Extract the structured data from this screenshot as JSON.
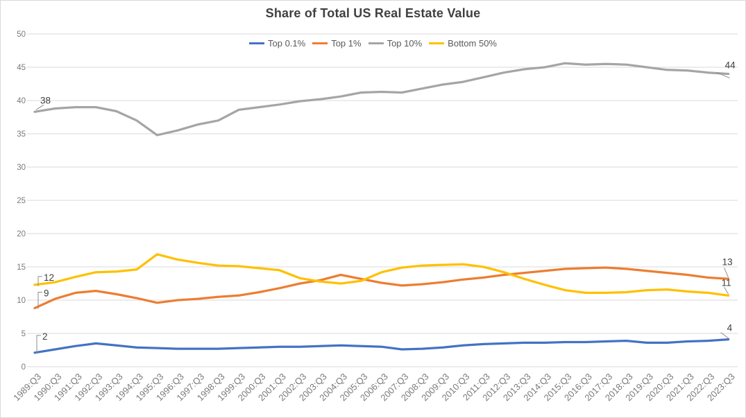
{
  "chart_data": {
    "type": "line",
    "title": "Share of Total US Real Estate Value",
    "xlabel": "",
    "ylabel": "",
    "ylim": [
      0,
      50
    ],
    "y_ticks": [
      0,
      5,
      10,
      15,
      20,
      25,
      30,
      35,
      40,
      45,
      50
    ],
    "grid": true,
    "legend_position": "top",
    "categories": [
      "1989:Q3",
      "1990:Q3",
      "1991:Q3",
      "1992:Q3",
      "1993:Q3",
      "1994:Q3",
      "1995:Q3",
      "1996:Q3",
      "1997:Q3",
      "1998:Q3",
      "1999:Q3",
      "2000:Q3",
      "2001:Q3",
      "2002:Q3",
      "2003:Q3",
      "2004:Q3",
      "2005:Q3",
      "2006:Q3",
      "2007:Q3",
      "2008:Q3",
      "2009:Q3",
      "2010:Q3",
      "2011:Q3",
      "2012:Q3",
      "2013:Q3",
      "2014:Q3",
      "2015:Q3",
      "2016:Q3",
      "2017:Q3",
      "2018:Q3",
      "2019:Q3",
      "2020:Q3",
      "2021:Q3",
      "2022:Q3",
      "2023:Q3"
    ],
    "series": [
      {
        "name": "Top 0.1%",
        "color": "#4472C4",
        "start_label": "2",
        "end_label": "4",
        "values": [
          2.1,
          2.6,
          3.1,
          3.5,
          3.2,
          2.9,
          2.8,
          2.7,
          2.7,
          2.7,
          2.8,
          2.9,
          3.0,
          3.0,
          3.1,
          3.2,
          3.1,
          3.0,
          2.6,
          2.7,
          2.9,
          3.2,
          3.4,
          3.5,
          3.6,
          3.6,
          3.7,
          3.7,
          3.8,
          3.9,
          3.6,
          3.6,
          3.8,
          3.9,
          4.1
        ]
      },
      {
        "name": "Top 1%",
        "color": "#ED7D31",
        "start_label": "9",
        "end_label": "13",
        "values": [
          8.8,
          10.2,
          11.1,
          11.4,
          10.9,
          10.3,
          9.6,
          10.0,
          10.2,
          10.5,
          10.7,
          11.2,
          11.8,
          12.5,
          13.0,
          13.8,
          13.2,
          12.6,
          12.2,
          12.4,
          12.7,
          13.1,
          13.4,
          13.8,
          14.1,
          14.4,
          14.7,
          14.8,
          14.9,
          14.7,
          14.4,
          14.1,
          13.8,
          13.4,
          13.2
        ]
      },
      {
        "name": "Top 10%",
        "color": "#A5A5A5",
        "start_label": "38",
        "end_label": "44",
        "values": [
          38.3,
          38.8,
          39.0,
          39.0,
          38.4,
          37.0,
          34.8,
          35.5,
          36.4,
          37.0,
          38.6,
          39.0,
          39.4,
          39.9,
          40.2,
          40.6,
          41.2,
          41.3,
          41.2,
          41.8,
          42.4,
          42.8,
          43.5,
          44.2,
          44.7,
          45.0,
          45.6,
          45.4,
          45.5,
          45.4,
          45.0,
          44.6,
          44.5,
          44.2,
          44.0
        ]
      },
      {
        "name": "Bottom 50%",
        "color": "#FFC000",
        "start_label": "12",
        "end_label": "11",
        "values": [
          12.3,
          12.7,
          13.5,
          14.2,
          14.3,
          14.6,
          16.9,
          16.1,
          15.6,
          15.2,
          15.1,
          14.8,
          14.5,
          13.3,
          12.8,
          12.5,
          12.9,
          14.2,
          14.9,
          15.2,
          15.3,
          15.4,
          15.0,
          14.2,
          13.2,
          12.3,
          11.5,
          11.1,
          11.1,
          11.2,
          11.5,
          11.6,
          11.3,
          11.1,
          10.7
        ]
      }
    ]
  }
}
